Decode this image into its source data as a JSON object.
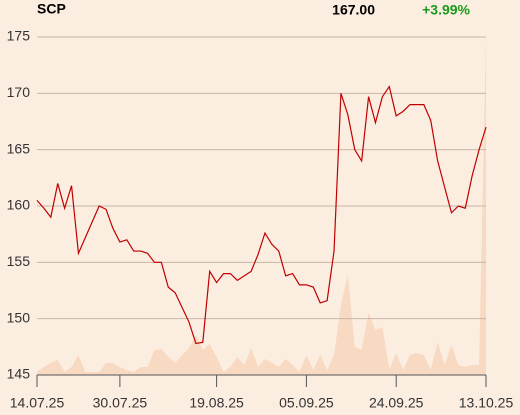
{
  "chart_data": {
    "type": "line",
    "title": "SCP",
    "last": "167.00",
    "change": "+3.99%",
    "change_color": "#1a9a1a",
    "categories": [
      "14.07.25",
      null,
      null,
      null,
      null,
      null,
      null,
      null,
      null,
      null,
      null,
      null,
      "30.07.25",
      null,
      null,
      null,
      null,
      null,
      null,
      null,
      null,
      null,
      null,
      null,
      null,
      null,
      "19.08.25",
      null,
      null,
      null,
      null,
      null,
      null,
      null,
      null,
      null,
      null,
      null,
      null,
      "05.09.25",
      null,
      null,
      null,
      null,
      null,
      null,
      null,
      null,
      null,
      null,
      null,
      null,
      "24.09.25",
      null,
      null,
      null,
      null,
      null,
      null,
      null,
      null,
      null,
      null,
      null,
      null,
      "13.10.25"
    ],
    "values": [
      160.5,
      159.8,
      159.0,
      162.0,
      159.8,
      161.8,
      155.8,
      157.2,
      158.6,
      160.0,
      159.7,
      158.0,
      156.8,
      157.0,
      156.0,
      156.0,
      155.8,
      155.0,
      155.0,
      152.8,
      152.3,
      151.0,
      149.7,
      147.8,
      147.9,
      154.2,
      153.2,
      154.0,
      154.0,
      153.4,
      153.8,
      154.2,
      155.7,
      157.6,
      156.6,
      156.0,
      153.8,
      154.0,
      153.0,
      153.0,
      152.8,
      151.4,
      151.6,
      156.0,
      170.0,
      168.1,
      165.0,
      164.0,
      169.7,
      167.4,
      169.7,
      170.6,
      168.0,
      168.4,
      169.0,
      169.0,
      169.0,
      167.6,
      164.0,
      161.7,
      159.4,
      160.0,
      159.8,
      162.7,
      165.0,
      167.0
    ],
    "color": "#c00000",
    "volume": {
      "color": "#f8d9c2",
      "values": [
        3,
        8,
        12,
        15,
        3,
        8,
        20,
        3,
        3,
        3,
        12,
        12,
        8,
        5,
        3,
        8,
        8,
        25,
        26,
        18,
        12,
        20,
        27,
        40,
        25,
        31,
        18,
        3,
        8,
        18,
        10,
        27,
        8,
        16,
        12,
        8,
        16,
        10,
        3,
        20,
        5,
        20,
        5,
        20,
        70,
        100,
        28,
        25,
        62,
        45,
        48,
        5,
        22,
        5,
        20,
        22,
        20,
        5,
        33,
        10,
        30,
        10,
        8,
        10,
        10,
        338
      ]
    },
    "ylim": [
      145,
      175
    ],
    "yticks": [
      145,
      150,
      155,
      160,
      165,
      170,
      175
    ],
    "grid": true
  }
}
